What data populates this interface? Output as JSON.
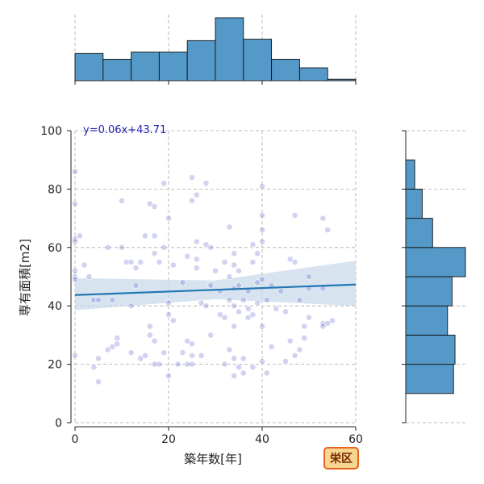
{
  "chart_data": {
    "type": "scatter",
    "xlabel": "築年数[年]",
    "ylabel": "専有面積[m2]",
    "xlim": [
      0,
      60
    ],
    "ylim": [
      0,
      100
    ],
    "x_ticks": [
      "0",
      "20",
      "40",
      "60"
    ],
    "y_ticks": [
      "0",
      "20",
      "40",
      "60",
      "80",
      "100"
    ],
    "grid": true,
    "annotation": "y=0.06x+43.71",
    "badge": "栄区",
    "colors": {
      "hist": "#5599c8",
      "points": "#4a4fc4",
      "trend": "#2277b4",
      "band": "#c6d9ea",
      "annotation": "#1f1fb4",
      "badge_fill": "#f7d690",
      "badge_stroke": "#e8641e"
    },
    "regression": {
      "slope": 0.06,
      "intercept": 43.71,
      "band_at_x0": [
        38.5,
        49.5
      ],
      "band_at_x60": [
        40.0,
        55.5
      ]
    },
    "x_hist": {
      "bin_edges": [
        0,
        6,
        12,
        18,
        24,
        30,
        36,
        42,
        48,
        54,
        60
      ],
      "counts": [
        19,
        15,
        20,
        20,
        28,
        44,
        29,
        15,
        9,
        1
      ]
    },
    "y_hist": {
      "bin_edges": [
        10,
        20,
        30,
        40,
        50,
        60,
        70,
        80,
        90
      ],
      "counts": [
        32,
        33,
        28,
        31,
        40,
        18,
        11,
        6
      ]
    },
    "points": [
      [
        0,
        86
      ],
      [
        0,
        75
      ],
      [
        0,
        63
      ],
      [
        0,
        62
      ],
      [
        0,
        52
      ],
      [
        0,
        50
      ],
      [
        0,
        49
      ],
      [
        0,
        23
      ],
      [
        1,
        64
      ],
      [
        2,
        54
      ],
      [
        3,
        50
      ],
      [
        4,
        19
      ],
      [
        4,
        42
      ],
      [
        5,
        14
      ],
      [
        5,
        22
      ],
      [
        5,
        42
      ],
      [
        7,
        60
      ],
      [
        7,
        25
      ],
      [
        8,
        42
      ],
      [
        8,
        26
      ],
      [
        9,
        29
      ],
      [
        9,
        27
      ],
      [
        10,
        76
      ],
      [
        10,
        60
      ],
      [
        11,
        55
      ],
      [
        12,
        55
      ],
      [
        12,
        40
      ],
      [
        12,
        24
      ],
      [
        13,
        53
      ],
      [
        13,
        47
      ],
      [
        14,
        55
      ],
      [
        14,
        22
      ],
      [
        15,
        64
      ],
      [
        15,
        23
      ],
      [
        16,
        75
      ],
      [
        16,
        33
      ],
      [
        16,
        30
      ],
      [
        17,
        74
      ],
      [
        17,
        64
      ],
      [
        17,
        58
      ],
      [
        17,
        28
      ],
      [
        17,
        20
      ],
      [
        18,
        55
      ],
      [
        18,
        20
      ],
      [
        19,
        82
      ],
      [
        19,
        60
      ],
      [
        19,
        24
      ],
      [
        20,
        70
      ],
      [
        20,
        41
      ],
      [
        20,
        37
      ],
      [
        20,
        16
      ],
      [
        21,
        54
      ],
      [
        21,
        35
      ],
      [
        22,
        20
      ],
      [
        23,
        48
      ],
      [
        23,
        24
      ],
      [
        24,
        57
      ],
      [
        24,
        28
      ],
      [
        24,
        20
      ],
      [
        25,
        84
      ],
      [
        25,
        76
      ],
      [
        25,
        27
      ],
      [
        25,
        23
      ],
      [
        25,
        20
      ],
      [
        26,
        78
      ],
      [
        26,
        62
      ],
      [
        26,
        56
      ],
      [
        26,
        53
      ],
      [
        27,
        41
      ],
      [
        27,
        23
      ],
      [
        28,
        82
      ],
      [
        28,
        61
      ],
      [
        28,
        40
      ],
      [
        29,
        60
      ],
      [
        29,
        47
      ],
      [
        29,
        30
      ],
      [
        30,
        52
      ],
      [
        31,
        45
      ],
      [
        31,
        37
      ],
      [
        32,
        55
      ],
      [
        32,
        36
      ],
      [
        32,
        20
      ],
      [
        33,
        67
      ],
      [
        33,
        50
      ],
      [
        33,
        42
      ],
      [
        33,
        25
      ],
      [
        34,
        58
      ],
      [
        34,
        54
      ],
      [
        34,
        46
      ],
      [
        34,
        40
      ],
      [
        34,
        33
      ],
      [
        34,
        22
      ],
      [
        34,
        16
      ],
      [
        35,
        52
      ],
      [
        35,
        47
      ],
      [
        35,
        38
      ],
      [
        35,
        19
      ],
      [
        36,
        42
      ],
      [
        36,
        22
      ],
      [
        36,
        17
      ],
      [
        37,
        45
      ],
      [
        37,
        39
      ],
      [
        37,
        36
      ],
      [
        38,
        61
      ],
      [
        38,
        55
      ],
      [
        38,
        37
      ],
      [
        38,
        19
      ],
      [
        39,
        58
      ],
      [
        39,
        48
      ],
      [
        39,
        41
      ],
      [
        40,
        81
      ],
      [
        40,
        71
      ],
      [
        40,
        66
      ],
      [
        40,
        62
      ],
      [
        40,
        49
      ],
      [
        40,
        33
      ],
      [
        40,
        21
      ],
      [
        41,
        42
      ],
      [
        41,
        17
      ],
      [
        42,
        47
      ],
      [
        42,
        26
      ],
      [
        43,
        39
      ],
      [
        44,
        45
      ],
      [
        45,
        21
      ],
      [
        45,
        38
      ],
      [
        46,
        56
      ],
      [
        46,
        28
      ],
      [
        47,
        71
      ],
      [
        47,
        55
      ],
      [
        47,
        23
      ],
      [
        48,
        25
      ],
      [
        48,
        42
      ],
      [
        49,
        33
      ],
      [
        49,
        29
      ],
      [
        50,
        50
      ],
      [
        50,
        46
      ],
      [
        50,
        36
      ],
      [
        53,
        70
      ],
      [
        53,
        46
      ],
      [
        53,
        34
      ],
      [
        53,
        33
      ],
      [
        54,
        66
      ],
      [
        54,
        34
      ],
      [
        55,
        35
      ]
    ]
  }
}
